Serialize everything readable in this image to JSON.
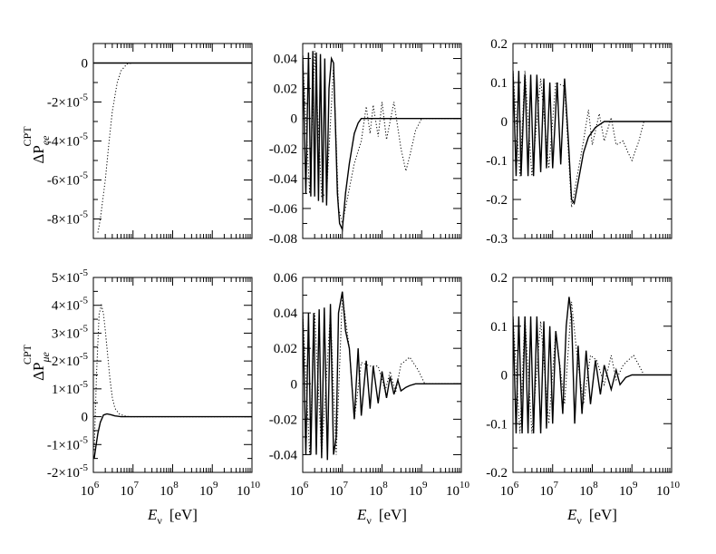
{
  "figure": {
    "ylabel_top": {
      "base": "ΔP",
      "sup": "CPT",
      "sub": "ee"
    },
    "ylabel_bottom": {
      "base": "ΔP",
      "sup": "CPT",
      "sub": "μe"
    },
    "xlabel": {
      "italic": "E",
      "sub": "ν",
      "unit": "[eV]"
    }
  },
  "chart_data": [
    {
      "id": "p11",
      "type": "line",
      "x_scale": "log",
      "xlim": [
        1000000.0,
        10000000000.0
      ],
      "ylim": [
        -9e-05,
        1e-05
      ],
      "yticks": [
        0,
        -2e-05,
        -4e-05,
        -6e-05,
        -8e-05
      ],
      "ytick_labels": [
        {
          "m": "0",
          "e": ""
        },
        {
          "m": "-2×10",
          "e": "-5"
        },
        {
          "m": "-4×10",
          "e": "-5"
        },
        {
          "m": "-6×10",
          "e": "-5"
        },
        {
          "m": "-8×10",
          "e": "-5"
        }
      ],
      "xticks_labeled": false,
      "series": [
        {
          "style": "solid",
          "x": [
            1000000.0,
            10000000.0,
            100000000.0,
            10000000000.0
          ],
          "y": [
            0,
            0,
            0,
            0
          ]
        },
        {
          "style": "dotted",
          "x": [
            1300000.0,
            1500000.0,
            2000000.0,
            2500000.0,
            3000000.0,
            4000000.0,
            5000000.0,
            7000000.0,
            10000000.0,
            10000000000.0
          ],
          "y": [
            -8.7e-05,
            -8e-05,
            -6e-05,
            -4e-05,
            -2.5e-05,
            -1e-05,
            -4e-06,
            -5e-07,
            0,
            0
          ]
        }
      ]
    },
    {
      "id": "p12",
      "type": "line",
      "x_scale": "log",
      "xlim": [
        1000000.0,
        10000000000.0
      ],
      "ylim": [
        -0.08,
        0.05
      ],
      "yticks": [
        0.04,
        0.02,
        0,
        -0.02,
        -0.04,
        -0.06,
        -0.08
      ],
      "ytick_labels": [
        {
          "m": "0.04",
          "e": ""
        },
        {
          "m": "0.02",
          "e": ""
        },
        {
          "m": "0",
          "e": ""
        },
        {
          "m": "-0.02",
          "e": ""
        },
        {
          "m": "-0.04",
          "e": ""
        },
        {
          "m": "-0.06",
          "e": ""
        },
        {
          "m": "-0.08",
          "e": ""
        }
      ],
      "xticks_labeled": false,
      "series": [
        {
          "style": "solid",
          "x": [
            1000000.0,
            1200000.0,
            1400000.0,
            1600000.0,
            1800000.0,
            2000000.0,
            2200000.0,
            2500000.0,
            2800000.0,
            3200000.0,
            3600000.0,
            4000000.0,
            4600000.0,
            5300000.0,
            6000000.0,
            6600000.0,
            7500000.0,
            8500000.0,
            10000000.0,
            12000000.0,
            15000000.0,
            20000000.0,
            25000000.0,
            30000000.0,
            50000000.0,
            100000000.0,
            10000000000.0
          ],
          "y": [
            0.042,
            -0.05,
            0.044,
            -0.052,
            0.045,
            -0.052,
            0.044,
            -0.055,
            0.043,
            -0.056,
            0.04,
            -0.058,
            0.02,
            0.04,
            0.037,
            0.0,
            -0.05,
            -0.07,
            -0.074,
            -0.05,
            -0.03,
            -0.01,
            -0.003,
            0,
            0,
            0,
            0
          ]
        },
        {
          "style": "dotted",
          "x": [
            1000000.0,
            1500000.0,
            2000000.0,
            3000000.0,
            4000000.0,
            6000000.0,
            8000000.0,
            10000000.0,
            13000000.0,
            20000000.0,
            30000000.0,
            40000000.0,
            50000000.0,
            60000000.0,
            80000000.0,
            100000000.0,
            130000000.0,
            200000000.0,
            300000000.0,
            400000000.0,
            500000000.0,
            700000000.0,
            1000000000.0,
            10000000000.0
          ],
          "y": [
            0.04,
            -0.05,
            0.045,
            -0.052,
            -0.05,
            0.035,
            -0.06,
            -0.07,
            -0.055,
            -0.03,
            -0.015,
            0.008,
            -0.01,
            0.009,
            -0.012,
            0.011,
            -0.014,
            0.011,
            -0.02,
            -0.035,
            -0.025,
            -0.008,
            0,
            0
          ]
        }
      ]
    },
    {
      "id": "p13",
      "type": "line",
      "x_scale": "log",
      "xlim": [
        1000000.0,
        10000000000.0
      ],
      "ylim": [
        -0.3,
        0.2
      ],
      "yticks": [
        0.2,
        0.1,
        0,
        -0.1,
        -0.2,
        -0.3
      ],
      "ytick_labels": [
        {
          "m": "0.2",
          "e": ""
        },
        {
          "m": "0.1",
          "e": ""
        },
        {
          "m": "0",
          "e": ""
        },
        {
          "m": "-0.1",
          "e": ""
        },
        {
          "m": "-0.2",
          "e": ""
        },
        {
          "m": "-0.3",
          "e": ""
        }
      ],
      "xticks_labeled": false,
      "series": [
        {
          "style": "solid",
          "x": [
            1000000.0,
            1200000.0,
            1400000.0,
            1600000.0,
            2000000.0,
            2400000.0,
            2800000.0,
            3300000.0,
            4000000.0,
            5000000.0,
            6000000.0,
            7000000.0,
            8500000.0,
            10000000.0,
            13000000.0,
            16000000.0,
            20000000.0,
            25000000.0,
            30000000.0,
            35000000.0,
            45000000.0,
            60000000.0,
            80000000.0,
            120000000.0,
            200000000.0,
            500000000.0,
            10000000000.0
          ],
          "y": [
            0.13,
            -0.14,
            0.13,
            -0.14,
            0.12,
            -0.14,
            0.12,
            -0.14,
            0.12,
            -0.13,
            0.11,
            -0.12,
            0.1,
            -0.12,
            0.1,
            -0.11,
            0.11,
            -0.05,
            -0.2,
            -0.21,
            -0.15,
            -0.08,
            -0.04,
            -0.015,
            0,
            0,
            0
          ]
        },
        {
          "style": "dotted",
          "x": [
            1000000.0,
            1500000.0,
            2000000.0,
            3000000.0,
            5000000.0,
            8000000.0,
            12000000.0,
            20000000.0,
            30000000.0,
            40000000.0,
            60000000.0,
            80000000.0,
            100000000.0,
            150000000.0,
            200000000.0,
            300000000.0,
            400000000.0,
            600000000.0,
            800000000.0,
            1000000000.0,
            1500000000.0,
            2000000000.0,
            10000000000.0
          ],
          "y": [
            0.13,
            -0.14,
            0.13,
            -0.14,
            0.11,
            -0.12,
            0.1,
            0.09,
            -0.22,
            -0.15,
            -0.05,
            0.03,
            -0.06,
            0.02,
            -0.05,
            0.01,
            -0.06,
            -0.05,
            -0.08,
            -0.1,
            -0.05,
            0,
            0
          ]
        }
      ]
    },
    {
      "id": "p21",
      "type": "line",
      "x_scale": "log",
      "xlim": [
        1000000.0,
        10000000000.0
      ],
      "ylim": [
        -2e-05,
        5e-05
      ],
      "yticks": [
        5e-05,
        4e-05,
        3e-05,
        2e-05,
        1e-05,
        0,
        -1e-05,
        -2e-05
      ],
      "ytick_labels": [
        {
          "m": "5×10",
          "e": "-5"
        },
        {
          "m": "4×10",
          "e": "-5"
        },
        {
          "m": "3×10",
          "e": "-5"
        },
        {
          "m": "2×10",
          "e": "-5"
        },
        {
          "m": "1×10",
          "e": "-5"
        },
        {
          "m": "0",
          "e": ""
        },
        {
          "m": "-1×10",
          "e": "-5"
        },
        {
          "m": "-2×10",
          "e": "-5"
        }
      ],
      "xticks_labeled": true,
      "xtick_labels": [
        {
          "m": "10",
          "e": "6"
        },
        {
          "m": "10",
          "e": "7"
        },
        {
          "m": "10",
          "e": "8"
        },
        {
          "m": "10",
          "e": "9"
        },
        {
          "m": "10",
          "e": "10"
        }
      ],
      "series": [
        {
          "style": "solid",
          "x": [
            1050000.0,
            1150000.0,
            1300000.0,
            1500000.0,
            1800000.0,
            2200000.0,
            2800000.0,
            3500000.0,
            5000000.0,
            7000000.0,
            10000000.0,
            10000000000.0
          ],
          "y": [
            -1.5e-05,
            -1.1e-05,
            -6e-06,
            -2e-06,
            6e-07,
            1e-06,
            7e-07,
            3e-07,
            0,
            0,
            0,
            0
          ]
        },
        {
          "style": "dotted",
          "x": [
            1050000.0,
            1200000.0,
            1400000.0,
            1600000.0,
            1800000.0,
            2000000.0,
            2300000.0,
            2600000.0,
            3000000.0,
            3500000.0,
            4500000.0,
            6000000.0,
            8000000.0,
            10000000.0,
            10000000000.0
          ],
          "y": [
            -1.2e-05,
            1.5e-05,
            3.7e-05,
            4e-05,
            3.7e-05,
            3.1e-05,
            2.2e-05,
            1.4e-05,
            7e-06,
            3e-06,
            1e-06,
            3e-07,
            0,
            0,
            0
          ]
        }
      ]
    },
    {
      "id": "p22",
      "type": "line",
      "x_scale": "log",
      "xlim": [
        1000000.0,
        10000000000.0
      ],
      "ylim": [
        -0.05,
        0.06
      ],
      "yticks": [
        0.06,
        0.04,
        0.02,
        0,
        -0.02,
        -0.04
      ],
      "ytick_labels": [
        {
          "m": "0.06",
          "e": ""
        },
        {
          "m": "0.04",
          "e": ""
        },
        {
          "m": "0.02",
          "e": ""
        },
        {
          "m": "0",
          "e": ""
        },
        {
          "m": "-0.02",
          "e": ""
        },
        {
          "m": "-0.04",
          "e": ""
        }
      ],
      "xticks_labeled": true,
      "xtick_labels": [
        {
          "m": "10",
          "e": "6"
        },
        {
          "m": "10",
          "e": "7"
        },
        {
          "m": "10",
          "e": "8"
        },
        {
          "m": "10",
          "e": "9"
        },
        {
          "m": "10",
          "e": "10"
        }
      ],
      "series": [
        {
          "style": "solid",
          "x": [
            1000000.0,
            1200000.0,
            1400000.0,
            1600000.0,
            1900000.0,
            2200000.0,
            2600000.0,
            3000000.0,
            3500000.0,
            4200000.0,
            5000000.0,
            6000000.0,
            7000000.0,
            8000000.0,
            10000000.0,
            12000000.0,
            15000000.0,
            20000000.0,
            25000000.0,
            30000000.0,
            40000000.0,
            50000000.0,
            60000000.0,
            80000000.0,
            100000000.0,
            130000000.0,
            160000000.0,
            200000000.0,
            250000000.0,
            300000000.0,
            400000000.0,
            500000000.0,
            700000000.0,
            1000000000.0,
            10000000000.0
          ],
          "y": [
            0.04,
            -0.04,
            0.04,
            -0.04,
            0.04,
            -0.04,
            0.042,
            -0.042,
            0.043,
            -0.043,
            0.045,
            -0.04,
            -0.03,
            0.04,
            0.052,
            0.03,
            0.02,
            -0.02,
            0.02,
            -0.018,
            0.013,
            -0.014,
            0.01,
            -0.011,
            0.007,
            -0.008,
            0.004,
            -0.006,
            0.002,
            -0.004,
            -0.002,
            -0.001,
            0,
            0,
            0
          ]
        },
        {
          "style": "dotted",
          "x": [
            1000000.0,
            1500000.0,
            2000000.0,
            3000000.0,
            5000000.0,
            7000000.0,
            10000000.0,
            15000000.0,
            20000000.0,
            30000000.0,
            50000000.0,
            80000000.0,
            120000000.0,
            160000000.0,
            220000000.0,
            300000000.0,
            500000000.0,
            800000000.0,
            1200000000.0,
            2000000000.0,
            10000000000.0
          ],
          "y": [
            0.04,
            -0.04,
            0.04,
            -0.04,
            0.04,
            -0.04,
            0.05,
            0.02,
            -0.02,
            0.012,
            0.01,
            0.01,
            -0.004,
            0.007,
            -0.005,
            0.011,
            0.015,
            0.008,
            0,
            0,
            0
          ]
        }
      ]
    },
    {
      "id": "p23",
      "type": "line",
      "x_scale": "log",
      "xlim": [
        1000000.0,
        10000000000.0
      ],
      "ylim": [
        -0.2,
        0.2
      ],
      "yticks": [
        0.2,
        0.1,
        0,
        -0.1,
        -0.2
      ],
      "ytick_labels": [
        {
          "m": "0.2",
          "e": ""
        },
        {
          "m": "0.1",
          "e": ""
        },
        {
          "m": "0",
          "e": ""
        },
        {
          "m": "-0.1",
          "e": ""
        },
        {
          "m": "-0.2",
          "e": ""
        }
      ],
      "xticks_labeled": true,
      "xtick_labels": [
        {
          "m": "10",
          "e": "6"
        },
        {
          "m": "10",
          "e": "7"
        },
        {
          "m": "10",
          "e": "8"
        },
        {
          "m": "10",
          "e": "9"
        },
        {
          "m": "10",
          "e": "10"
        }
      ],
      "series": [
        {
          "style": "solid",
          "x": [
            1000000.0,
            1200000.0,
            1400000.0,
            1700000.0,
            2000000.0,
            2400000.0,
            2800000.0,
            3300000.0,
            4000000.0,
            5000000.0,
            6000000.0,
            7000000.0,
            8500000.0,
            10000000.0,
            12000000.0,
            15000000.0,
            18000000.0,
            22000000.0,
            26000000.0,
            30000000.0,
            36000000.0,
            44000000.0,
            55000000.0,
            70000000.0,
            90000000.0,
            120000000.0,
            160000000.0,
            200000000.0,
            300000000.0,
            400000000.0,
            500000000.0,
            700000000.0,
            1000000000.0,
            10000000000.0
          ],
          "y": [
            0.12,
            -0.12,
            0.12,
            -0.12,
            0.12,
            -0.12,
            0.12,
            -0.12,
            0.12,
            -0.12,
            0.11,
            -0.11,
            0.1,
            -0.1,
            0.09,
            0.02,
            -0.08,
            0.1,
            0.16,
            0.12,
            -0.1,
            0.06,
            -0.08,
            0.05,
            -0.06,
            0.03,
            -0.04,
            0.02,
            -0.03,
            0.01,
            -0.02,
            -0.005,
            0,
            0
          ]
        },
        {
          "style": "dotted",
          "x": [
            1000000.0,
            1500000.0,
            2000000.0,
            3000000.0,
            5000000.0,
            8000000.0,
            12000000.0,
            20000000.0,
            30000000.0,
            40000000.0,
            60000000.0,
            90000000.0,
            130000000.0,
            200000000.0,
            300000000.0,
            400000000.0,
            600000000.0,
            800000000.0,
            1100000000.0,
            1500000000.0,
            2000000000.0,
            10000000000.0
          ],
          "y": [
            0.12,
            -0.12,
            0.12,
            -0.12,
            0.11,
            -0.1,
            0.09,
            -0.06,
            0.15,
            0.05,
            -0.06,
            0.04,
            0.03,
            -0.02,
            0.04,
            -0.01,
            0.02,
            0.03,
            0.04,
            0.02,
            0,
            0
          ]
        }
      ]
    }
  ]
}
